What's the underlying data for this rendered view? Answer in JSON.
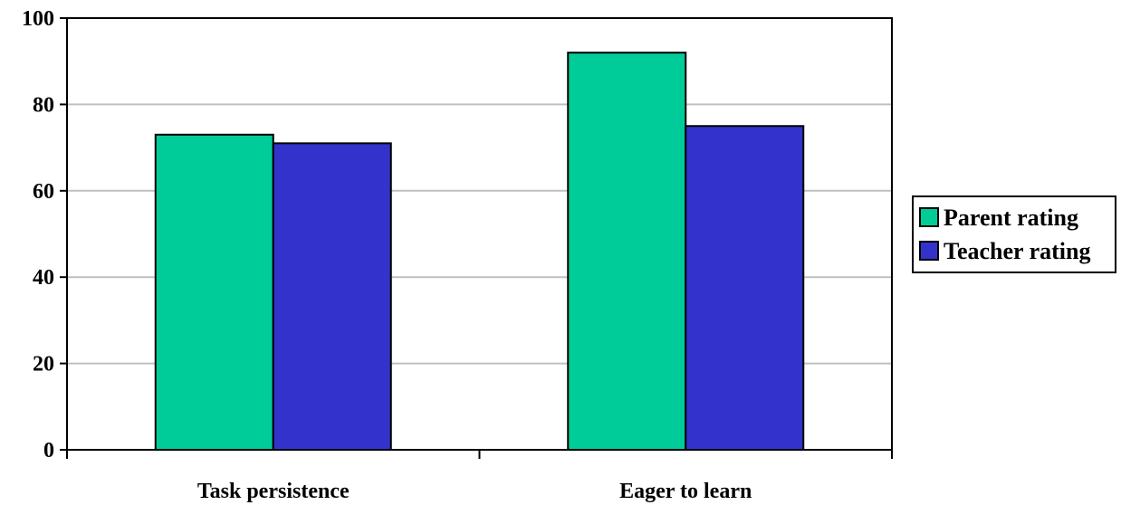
{
  "chart_data": {
    "type": "bar",
    "title": "",
    "xlabel": "",
    "ylabel": "",
    "categories": [
      "Task persistence",
      "Eager to learn"
    ],
    "series": [
      {
        "name": "Parent rating",
        "values": [
          73,
          92
        ],
        "color": "#00cc99"
      },
      {
        "name": "Teacher rating",
        "values": [
          71,
          75
        ],
        "color": "#3333cc"
      }
    ],
    "ylim": [
      0,
      100
    ],
    "yticks": [
      0,
      20,
      40,
      60,
      80,
      100
    ],
    "grid": true,
    "legend_position": "right"
  }
}
